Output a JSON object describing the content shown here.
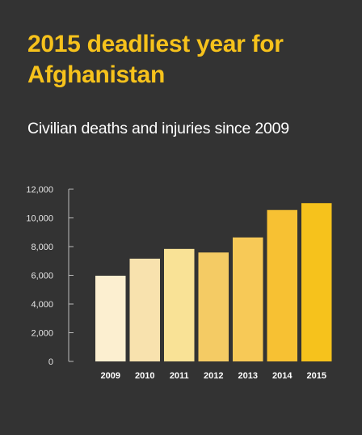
{
  "title": "2015 deadliest year for Afghanistan",
  "subtitle": "Civilian deaths and injuries since 2009",
  "chart_data": {
    "type": "bar",
    "title": "2015 deadliest year for Afghanistan",
    "subtitle": "Civilian deaths and injuries since 2009",
    "categories": [
      "2009",
      "2010",
      "2011",
      "2012",
      "2013",
      "2014",
      "2015"
    ],
    "values": [
      5970,
      7160,
      7840,
      7590,
      8640,
      10550,
      11030
    ],
    "ylim": [
      0,
      12000
    ],
    "yticks": [
      0,
      2000,
      4000,
      6000,
      8000,
      10000,
      12000
    ],
    "ytick_labels": [
      "0",
      "2,000",
      "4,000",
      "6,000",
      "8,000",
      "10,000",
      "12,000"
    ],
    "xlabel": "",
    "ylabel": "",
    "grid": false,
    "legend": "none",
    "colors": [
      "#FCEFD0",
      "#F8E2AE",
      "#F9E296",
      "#F4CB64",
      "#F7C957",
      "#F7C133",
      "#F6C21C"
    ]
  },
  "colors": {
    "background": "#333333",
    "title": "#F6C21C",
    "subtitle": "#FFFFFF",
    "axis": "#BBBBBB",
    "tick_text": "#E6E6E6"
  }
}
